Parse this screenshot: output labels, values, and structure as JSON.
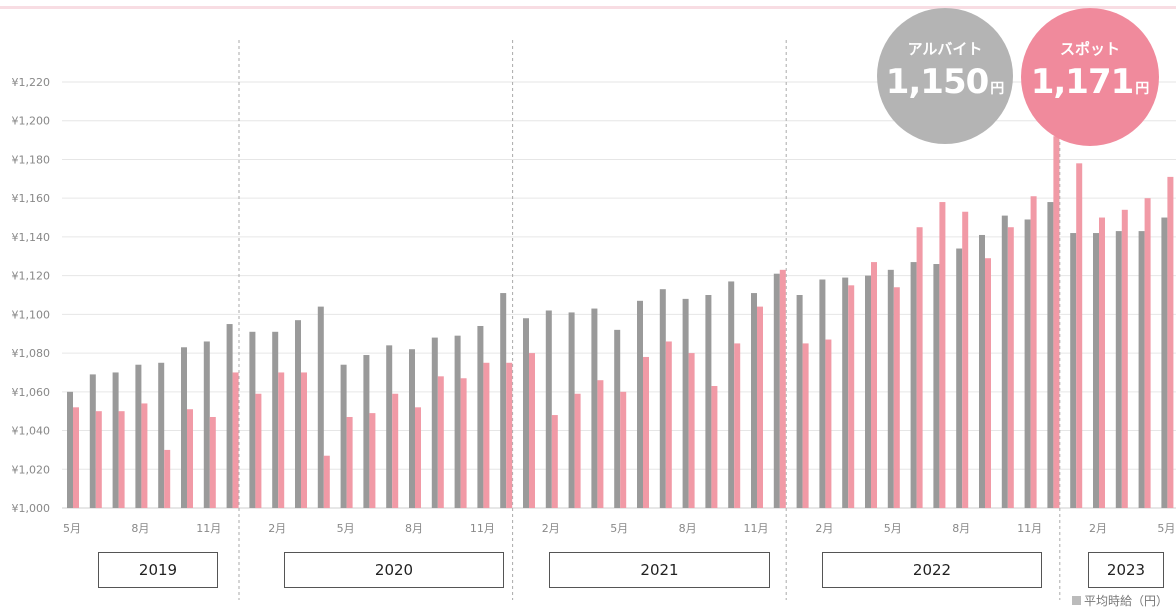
{
  "chart_data": {
    "type": "bar",
    "ylim": [
      1000,
      1220
    ],
    "ytick_labels": [
      "¥1,000",
      "¥1,020",
      "¥1,040",
      "¥1,060",
      "¥1,080",
      "¥1,100",
      "¥1,120",
      "¥1,140",
      "¥1,160",
      "¥1,180",
      "¥1,200",
      "¥1,220"
    ],
    "ytick_values": [
      1000,
      1020,
      1040,
      1060,
      1080,
      1100,
      1120,
      1140,
      1160,
      1180,
      1200,
      1220
    ],
    "categories": [
      "2019-05",
      "2019-06",
      "2019-07",
      "2019-08",
      "2019-09",
      "2019-10",
      "2019-11",
      "2019-12",
      "2020-01",
      "2020-02",
      "2020-03",
      "2020-04",
      "2020-05",
      "2020-06",
      "2020-07",
      "2020-08",
      "2020-09",
      "2020-10",
      "2020-11",
      "2020-12",
      "2021-01",
      "2021-02",
      "2021-03",
      "2021-04",
      "2021-05",
      "2021-06",
      "2021-07",
      "2021-08",
      "2021-09",
      "2021-10",
      "2021-11",
      "2021-12",
      "2022-01",
      "2022-02",
      "2022-03",
      "2022-04",
      "2022-05",
      "2022-06",
      "2022-07",
      "2022-08",
      "2022-09",
      "2022-10",
      "2022-11",
      "2022-12",
      "2023-01",
      "2023-02",
      "2023-03",
      "2023-04",
      "2023-05"
    ],
    "series": [
      {
        "color": "#9a9a9a",
        "values": [
          1060,
          1069,
          1070,
          1074,
          1075,
          1083,
          1086,
          1095,
          1091,
          1091,
          1097,
          1104,
          1074,
          1079,
          1084,
          1082,
          1088,
          1089,
          1094,
          1111,
          1098,
          1102,
          1101,
          1103,
          1092,
          1107,
          1113,
          1108,
          1110,
          1117,
          1111,
          1121,
          1110,
          1118,
          1119,
          1120,
          1123,
          1127,
          1126,
          1134,
          1141,
          1151,
          1149,
          1158,
          1142,
          1142,
          1143,
          1143,
          1150
        ]
      },
      {
        "color": "#f19aa6",
        "values": [
          1052,
          1050,
          1050,
          1054,
          1030,
          1051,
          1047,
          1070,
          1059,
          1070,
          1070,
          1027,
          1047,
          1049,
          1059,
          1052,
          1068,
          1067,
          1075,
          1075,
          1080,
          1048,
          1059,
          1066,
          1060,
          1078,
          1086,
          1080,
          1063,
          1085,
          1104,
          1123,
          1085,
          1087,
          1115,
          1127,
          1114,
          1145,
          1158,
          1153,
          1129,
          1145,
          1161,
          1192,
          1178,
          1150,
          1154,
          1160,
          1171
        ]
      }
    ],
    "xtick_labels": [
      {
        "i": 0,
        "label": "5月"
      },
      {
        "i": 3,
        "label": "8月"
      },
      {
        "i": 6,
        "label": "11月"
      },
      {
        "i": 9,
        "label": "2月"
      },
      {
        "i": 12,
        "label": "5月"
      },
      {
        "i": 15,
        "label": "8月"
      },
      {
        "i": 18,
        "label": "11月"
      },
      {
        "i": 21,
        "label": "2月"
      },
      {
        "i": 24,
        "label": "5月"
      },
      {
        "i": 27,
        "label": "8月"
      },
      {
        "i": 30,
        "label": "11月"
      },
      {
        "i": 33,
        "label": "2月"
      },
      {
        "i": 36,
        "label": "5月"
      },
      {
        "i": 39,
        "label": "8月"
      },
      {
        "i": 42,
        "label": "11月"
      },
      {
        "i": 45,
        "label": "2月"
      },
      {
        "i": 48,
        "label": "5月"
      }
    ],
    "years": [
      "2019",
      "2020",
      "2021",
      "2022",
      "2023"
    ],
    "year_start_index": [
      0,
      8,
      20,
      32,
      44
    ],
    "grid": true
  },
  "bubbles": {
    "arubaito": {
      "label": "アルバイト",
      "value": "1,150",
      "unit": "円",
      "color": "#b4b4b4"
    },
    "spot": {
      "label": "スポット",
      "value": "1,171",
      "unit": "円",
      "color": "#f08a9c"
    }
  },
  "legend": {
    "label": "平均時給（円）"
  }
}
